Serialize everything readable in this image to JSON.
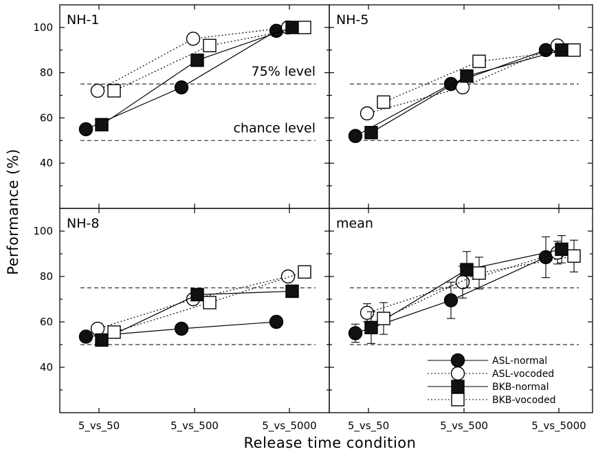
{
  "chart_data": [
    {
      "type": "line",
      "title": "NH-1",
      "categories": [
        "5_vs_50",
        "5_vs_500",
        "5_vs_5000"
      ],
      "ylim": [
        20,
        110
      ],
      "ylabel": "Performance (%)",
      "annotations": [
        {
          "text": "75% level",
          "y": 75
        },
        {
          "text": "chance level",
          "y": 50
        }
      ],
      "series": [
        {
          "name": "ASL-normal",
          "values": [
            55,
            73.5,
            98.5
          ]
        },
        {
          "name": "ASL-vocoded",
          "values": [
            72,
            95,
            100
          ]
        },
        {
          "name": "BKB-normal",
          "values": [
            57,
            85.5,
            100
          ]
        },
        {
          "name": "BKB-vocoded",
          "values": [
            72,
            92,
            100
          ]
        }
      ]
    },
    {
      "type": "line",
      "title": "NH-5",
      "categories": [
        "5_vs_50",
        "5_vs_500",
        "5_vs_5000"
      ],
      "ylim": [
        20,
        110
      ],
      "series": [
        {
          "name": "ASL-normal",
          "values": [
            52,
            75,
            90
          ]
        },
        {
          "name": "ASL-vocoded",
          "values": [
            62,
            73.5,
            92
          ]
        },
        {
          "name": "BKB-normal",
          "values": [
            53.5,
            78.5,
            90
          ]
        },
        {
          "name": "BKB-vocoded",
          "values": [
            67,
            85,
            90
          ]
        }
      ]
    },
    {
      "type": "line",
      "title": "NH-8",
      "categories": [
        "5_vs_50",
        "5_vs_500",
        "5_vs_5000"
      ],
      "ylim": [
        20,
        110
      ],
      "series": [
        {
          "name": "ASL-normal",
          "values": [
            53.5,
            57,
            60
          ]
        },
        {
          "name": "ASL-vocoded",
          "values": [
            57,
            70,
            80
          ]
        },
        {
          "name": "BKB-normal",
          "values": [
            52,
            72,
            73.5
          ]
        },
        {
          "name": "BKB-vocoded",
          "values": [
            55.5,
            68.5,
            82
          ]
        }
      ]
    },
    {
      "type": "line",
      "title": "mean",
      "categories": [
        "5_vs_50",
        "5_vs_500",
        "5_vs_5000"
      ],
      "ylim": [
        20,
        110
      ],
      "series": [
        {
          "name": "ASL-normal",
          "values": [
            55,
            69.5,
            88.5
          ],
          "err": [
            4,
            8,
            9
          ]
        },
        {
          "name": "ASL-vocoded",
          "values": [
            64,
            77.5,
            90.5
          ],
          "err": [
            4,
            7,
            5
          ]
        },
        {
          "name": "BKB-normal",
          "values": [
            57.5,
            83,
            92
          ],
          "err": [
            7,
            8,
            6
          ]
        },
        {
          "name": "BKB-vocoded",
          "values": [
            61.5,
            81.5,
            89
          ],
          "err": [
            7,
            7,
            7
          ]
        }
      ]
    }
  ],
  "xlabel": "Release time condition",
  "ylabel": "Performance (%)",
  "y_ticks": [
    40,
    60,
    80,
    100
  ],
  "x_tick_labels": [
    "5_vs_50",
    "5_vs_500",
    "5_vs_5000"
  ],
  "reference_lines": [
    75,
    50
  ],
  "legend": {
    "position": "bottom-right of mean panel",
    "entries": [
      "ASL-normal",
      "ASL-vocoded",
      "BKB-normal",
      "BKB-vocoded"
    ]
  }
}
